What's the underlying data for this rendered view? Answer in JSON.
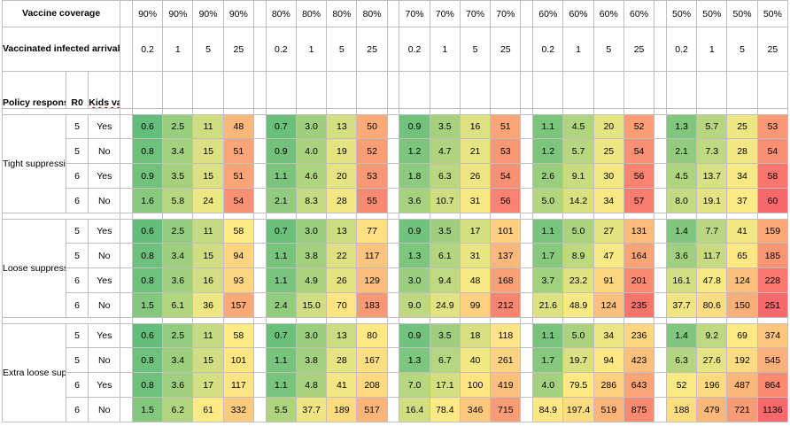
{
  "table": {
    "coverage_label": "Vaccine coverage",
    "arrivals_label": "Vaccinated infected arrivals per day",
    "policy_header": "Policy response",
    "r0_header": "R0",
    "kids_header": "Kids vacc",
    "coverage_groups": [
      "90%",
      "80%",
      "70%",
      "60%",
      "50%"
    ],
    "arrivals": [
      "0.2",
      "1",
      "5",
      "25"
    ],
    "groups": [
      {
        "policy": "Tight suppression",
        "rows": [
          {
            "r0": "5",
            "kids": "Yes",
            "cells": [
              "0.6",
              "2.5",
              "11",
              "48",
              "0.7",
              "3.0",
              "13",
              "50",
              "0.9",
              "3.5",
              "16",
              "51",
              "1.1",
              "4.5",
              "20",
              "52",
              "1.3",
              "5.7",
              "25",
              "53"
            ]
          },
          {
            "r0": "5",
            "kids": "No",
            "cells": [
              "0.8",
              "3.4",
              "15",
              "51",
              "0.9",
              "4.0",
              "19",
              "52",
              "1.2",
              "4.7",
              "21",
              "53",
              "1.2",
              "5.7",
              "25",
              "54",
              "2.1",
              "7.3",
              "28",
              "54"
            ]
          },
          {
            "r0": "6",
            "kids": "Yes",
            "cells": [
              "0.9",
              "3.5",
              "15",
              "51",
              "1.1",
              "4.6",
              "20",
              "53",
              "1.8",
              "6.3",
              "26",
              "54",
              "2.6",
              "9.1",
              "30",
              "56",
              "4.5",
              "13.7",
              "34",
              "58"
            ]
          },
          {
            "r0": "6",
            "kids": "No",
            "cells": [
              "1.6",
              "5.8",
              "24",
              "54",
              "2.1",
              "8.3",
              "28",
              "55",
              "3.6",
              "10.7",
              "31",
              "56",
              "5.0",
              "14.2",
              "34",
              "57",
              "8.0",
              "19.1",
              "37",
              "60"
            ]
          }
        ]
      },
      {
        "policy": "Loose suppression",
        "rows": [
          {
            "r0": "5",
            "kids": "Yes",
            "cells": [
              "0.6",
              "2.5",
              "11",
              "58",
              "0.7",
              "3.0",
              "13",
              "77",
              "0.9",
              "3.5",
              "17",
              "101",
              "1.1",
              "5.0",
              "27",
              "131",
              "1.4",
              "7.7",
              "41",
              "159"
            ]
          },
          {
            "r0": "5",
            "kids": "No",
            "cells": [
              "0.8",
              "3.4",
              "15",
              "94",
              "1.1",
              "3.8",
              "22",
              "117",
              "1.3",
              "6.1",
              "31",
              "137",
              "1.7",
              "8.9",
              "47",
              "164",
              "3.6",
              "11.7",
              "65",
              "185"
            ]
          },
          {
            "r0": "6",
            "kids": "Yes",
            "cells": [
              "0.8",
              "3.6",
              "16",
              "93",
              "1.1",
              "4.9",
              "26",
              "129",
              "3.0",
              "9.4",
              "48",
              "168",
              "3.7",
              "23.2",
              "91",
              "201",
              "16.1",
              "47.8",
              "124",
              "228"
            ]
          },
          {
            "r0": "6",
            "kids": "No",
            "cells": [
              "1.5",
              "6.1",
              "36",
              "157",
              "2.4",
              "15.0",
              "70",
              "183",
              "9.0",
              "24.9",
              "99",
              "212",
              "21.6",
              "48.9",
              "124",
              "235",
              "37.7",
              "80.6",
              "150",
              "251"
            ]
          }
        ]
      },
      {
        "policy": "Extra loose suppression",
        "rows": [
          {
            "r0": "5",
            "kids": "Yes",
            "cells": [
              "0.6",
              "2.5",
              "11",
              "58",
              "0.7",
              "3.0",
              "13",
              "80",
              "0.9",
              "3.5",
              "18",
              "118",
              "1.1",
              "5.0",
              "34",
              "236",
              "1.4",
              "9.2",
              "69",
              "374"
            ]
          },
          {
            "r0": "5",
            "kids": "No",
            "cells": [
              "0.8",
              "3.4",
              "15",
              "101",
              "1.1",
              "3.8",
              "28",
              "167",
              "1.3",
              "6.7",
              "40",
              "261",
              "1.7",
              "19.7",
              "94",
              "423",
              "6.3",
              "27.6",
              "192",
              "545"
            ]
          },
          {
            "r0": "6",
            "kids": "Yes",
            "cells": [
              "0.8",
              "3.6",
              "17",
              "117",
              "1.1",
              "4.8",
              "41",
              "208",
              "7.0",
              "17.1",
              "100",
              "419",
              "4.0",
              "79.5",
              "286",
              "643",
              "52",
              "196",
              "487",
              "864"
            ]
          },
          {
            "r0": "6",
            "kids": "No",
            "cells": [
              "1.5",
              "6.2",
              "61",
              "332",
              "5.5",
              "37.7",
              "189",
              "517",
              "16.4",
              "78.4",
              "346",
              "715",
              "84.9",
              "197.4",
              "519",
              "875",
              "188",
              "479",
              "721",
              "1136"
            ]
          }
        ]
      }
    ],
    "colors": {
      "low": "#63be7b",
      "mid": "#ffeb84",
      "high": "#f8696b"
    }
  }
}
